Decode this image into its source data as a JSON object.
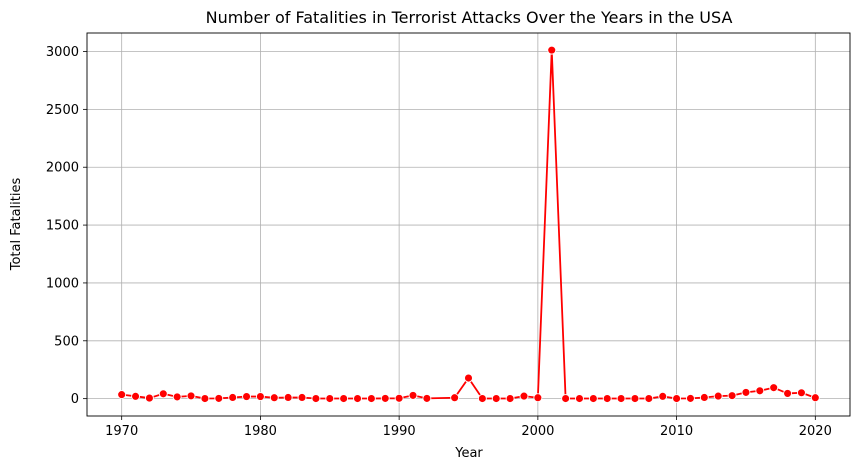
{
  "chart_data": {
    "type": "line",
    "title": "Number of Fatalities in Terrorist Attacks Over the Years in the USA",
    "xlabel": "Year",
    "ylabel": "Total Fatalities",
    "xlim": [
      1967.5,
      2022.5
    ],
    "ylim": [
      -150,
      3160
    ],
    "xticks": [
      1970,
      1980,
      1990,
      2000,
      2010,
      2020
    ],
    "yticks": [
      0,
      500,
      1000,
      1500,
      2000,
      2500,
      3000
    ],
    "grid": true,
    "line_color": "#ff0000",
    "marker": "circle",
    "series": [
      {
        "x": [
          1970,
          1971,
          1972,
          1973,
          1974,
          1975,
          1976,
          1977,
          1978,
          1979,
          1980,
          1981,
          1982,
          1983,
          1984,
          1985,
          1986,
          1987,
          1988,
          1989,
          1990,
          1991,
          1992,
          1994,
          1995,
          1996,
          1997,
          1998,
          1999,
          2000,
          2001,
          2002,
          2003,
          2004,
          2005,
          2006,
          2007,
          2008,
          2009,
          2010,
          2011,
          2012,
          2013,
          2014,
          2015,
          2016,
          2017,
          2018,
          2019,
          2020
        ],
        "y": [
          35,
          20,
          5,
          42,
          15,
          24,
          1,
          2,
          10,
          18,
          18,
          8,
          10,
          10,
          1,
          1,
          1,
          1,
          1,
          2,
          3,
          28,
          2,
          8,
          178,
          1,
          1,
          1,
          22,
          8,
          3012,
          1,
          1,
          1,
          1,
          1,
          1,
          1,
          20,
          1,
          2,
          10,
          22,
          26,
          54,
          68,
          95,
          45,
          51,
          8
        ]
      }
    ]
  }
}
